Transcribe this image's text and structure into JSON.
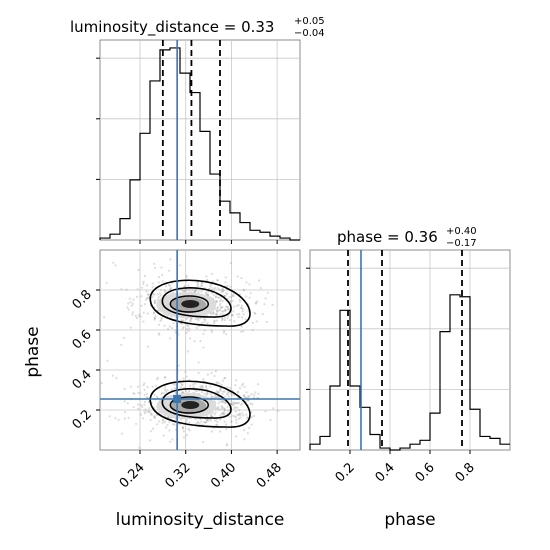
{
  "colors": {
    "truth": "#3b76af",
    "hist": "#000000",
    "grid": "#c8c8c8",
    "axes": "#808080"
  },
  "chart_data": {
    "type": "corner",
    "parameters": [
      "luminosity_distance",
      "phase"
    ],
    "truth": {
      "luminosity_distance": 0.305,
      "phase": 0.255
    },
    "panels": {
      "luminosity_distance_hist": {
        "title_param": "luminosity_distance",
        "title_eq": " = ",
        "median_text": "0.33",
        "plus_text": "+0.05",
        "minus_text": "−0.04",
        "xlim": [
          0.17,
          0.52
        ],
        "quantiles": [
          0.28,
          0.33,
          0.38
        ],
        "bin_edges": [
          0.17,
          0.1875,
          0.205,
          0.2225,
          0.24,
          0.2575,
          0.275,
          0.2925,
          0.31,
          0.3275,
          0.345,
          0.3625,
          0.38,
          0.3975,
          0.415,
          0.4325,
          0.45,
          0.4675,
          0.485,
          0.5025,
          0.52
        ],
        "counts": [
          0.01,
          0.03,
          0.11,
          0.31,
          0.55,
          0.82,
          0.98,
          0.99,
          0.86,
          0.76,
          0.56,
          0.34,
          0.2,
          0.14,
          0.09,
          0.05,
          0.04,
          0.02,
          0.01,
          0.0
        ]
      },
      "phase_hist": {
        "title_param": "phase",
        "title_eq": " = ",
        "median_text": "0.36",
        "plus_text": "+0.40",
        "minus_text": "−0.17",
        "xlim": [
          0.0,
          1.0
        ],
        "quantiles": [
          0.19,
          0.36,
          0.76
        ],
        "bin_edges": [
          0.0,
          0.05,
          0.1,
          0.15,
          0.2,
          0.25,
          0.3,
          0.35,
          0.4,
          0.45,
          0.5,
          0.55,
          0.6,
          0.65,
          0.7,
          0.75,
          0.8,
          0.85,
          0.9,
          0.95,
          1.0
        ],
        "counts": [
          0.03,
          0.07,
          0.33,
          0.72,
          0.33,
          0.22,
          0.08,
          0.01,
          0.0,
          0.01,
          0.03,
          0.05,
          0.19,
          0.61,
          0.8,
          0.79,
          0.21,
          0.07,
          0.06,
          0.03
        ]
      },
      "scatter_2d": {
        "xlim": [
          0.17,
          0.52
        ],
        "ylim": [
          0.0,
          1.0
        ],
        "upper_blob": {
          "cx": 0.335,
          "cy": 0.73,
          "sx": 0.045,
          "sy": 0.065
        },
        "lower_blob": {
          "cx": 0.335,
          "cy": 0.225,
          "sx": 0.045,
          "sy": 0.065
        }
      }
    },
    "xticks_distance": [
      "0.24",
      "0.32",
      "0.40",
      "0.48"
    ],
    "xtick_values_distance": [
      0.24,
      0.32,
      0.4,
      0.48
    ],
    "yticks_phase": [
      "0.2",
      "0.4",
      "0.6",
      "0.8"
    ],
    "ytick_values_phase": [
      0.2,
      0.4,
      0.6,
      0.8
    ],
    "xticks_phase": [
      "0.2",
      "0.4",
      "0.6",
      "0.8"
    ],
    "xtick_values_phase": [
      0.2,
      0.4,
      0.6,
      0.8
    ],
    "xlabel_left": "luminosity_distance",
    "xlabel_right": "phase",
    "ylabel_left": "phase"
  }
}
